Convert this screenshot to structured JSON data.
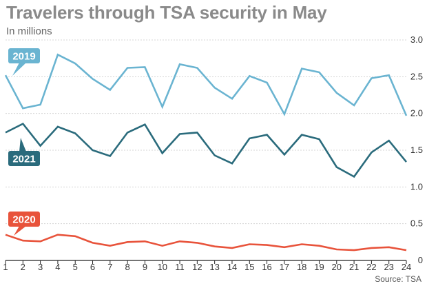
{
  "header": {
    "title": "Travelers through TSA security in May",
    "subtitle": "In millions"
  },
  "footer": {
    "source": "Source: TSA"
  },
  "chart_data": {
    "type": "line",
    "title": "Travelers through TSA security in May",
    "subtitle": "In millions",
    "x": [
      1,
      2,
      3,
      4,
      5,
      6,
      7,
      8,
      9,
      10,
      11,
      12,
      13,
      14,
      15,
      16,
      17,
      18,
      19,
      20,
      21,
      22,
      23,
      24
    ],
    "xlim": [
      1,
      24
    ],
    "ylim": [
      0,
      3.0
    ],
    "y_ticks": [
      "0",
      "0.5",
      "1.0",
      "1.5",
      "2.0",
      "2.5",
      "3.0"
    ],
    "y_axis_position": "right",
    "grid": true,
    "legend": "inline labels",
    "series": [
      {
        "name": "2019",
        "color": "#6ab4d1",
        "values": [
          2.52,
          2.07,
          2.12,
          2.8,
          2.68,
          2.47,
          2.32,
          2.62,
          2.63,
          2.09,
          2.67,
          2.62,
          2.35,
          2.2,
          2.51,
          2.42,
          1.99,
          2.61,
          2.56,
          2.28,
          2.11,
          2.48,
          2.52,
          1.97
        ]
      },
      {
        "name": "2021",
        "color": "#2a6b7c",
        "values": [
          1.74,
          1.86,
          1.56,
          1.82,
          1.73,
          1.5,
          1.42,
          1.74,
          1.85,
          1.46,
          1.72,
          1.74,
          1.43,
          1.32,
          1.66,
          1.71,
          1.44,
          1.71,
          1.65,
          1.27,
          1.14,
          1.47,
          1.63,
          1.34
        ]
      },
      {
        "name": "2020",
        "color": "#e8533b",
        "values": [
          0.35,
          0.27,
          0.26,
          0.35,
          0.33,
          0.24,
          0.2,
          0.25,
          0.26,
          0.2,
          0.26,
          0.24,
          0.19,
          0.17,
          0.22,
          0.21,
          0.18,
          0.22,
          0.2,
          0.15,
          0.14,
          0.17,
          0.18,
          0.14
        ]
      }
    ]
  }
}
